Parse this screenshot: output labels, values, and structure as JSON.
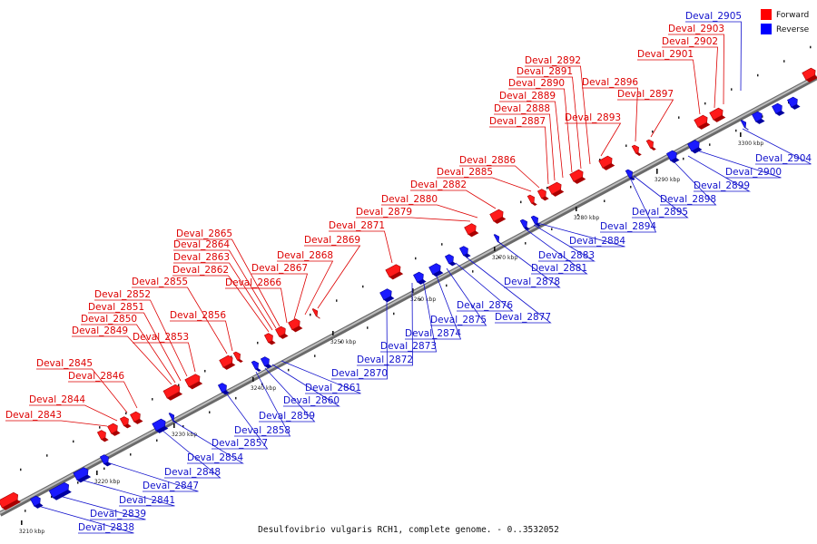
{
  "caption": "Desulfovibrio vulgaris RCH1, complete genome. - 0..3532052",
  "legend": [
    {
      "label": "Forward",
      "color": "#ff0000"
    },
    {
      "label": "Reverse",
      "color": "#0000ff"
    }
  ],
  "ticks": [
    "3210 kbp",
    "3220 kbp",
    "3230 kbp",
    "3240 kbp",
    "3250 kbp",
    "3260 kbp",
    "3270 kbp",
    "3280 kbp",
    "3290 kbp",
    "3300 kbp"
  ],
  "forward_labels": [
    "Deval_2843",
    "Deval_2844",
    "Deval_2845",
    "Deval_2846",
    "Deval_2849",
    "Deval_2850",
    "Deval_2851",
    "Deval_2852",
    "Deval_2853",
    "Deval_2855",
    "Deval_2856",
    "Deval_2862",
    "Deval_2863",
    "Deval_2864",
    "Deval_2865",
    "Deval_2866",
    "Deval_2867",
    "Deval_2868",
    "Deval_2869",
    "Deval_2871",
    "Deval_2879",
    "Deval_2880",
    "Deval_2882",
    "Deval_2885",
    "Deval_2886",
    "Deval_2887",
    "Deval_2888",
    "Deval_2889",
    "Deval_2890",
    "Deval_2891",
    "Deval_2892",
    "Deval_2893",
    "Deval_2896",
    "Deval_2897",
    "Deval_2901",
    "Deval_2902",
    "Deval_2903"
  ],
  "reverse_labels": [
    "Deval_2838",
    "Deval_2839",
    "Deval_2841",
    "Deval_2847",
    "Deval_2848",
    "Deval_2854",
    "Deval_2857",
    "Deval_2858",
    "Deval_2859",
    "Deval_2860",
    "Deval_2861",
    "Deval_2870",
    "Deval_2872",
    "Deval_2873",
    "Deval_2874",
    "Deval_2875",
    "Deval_2876",
    "Deval_2877",
    "Deval_2878",
    "Deval_2881",
    "Deval_2883",
    "Deval_2884",
    "Deval_2894",
    "Deval_2895",
    "Deval_2898",
    "Deval_2899",
    "Deval_2900",
    "Deval_2904",
    "Deval_2905"
  ]
}
